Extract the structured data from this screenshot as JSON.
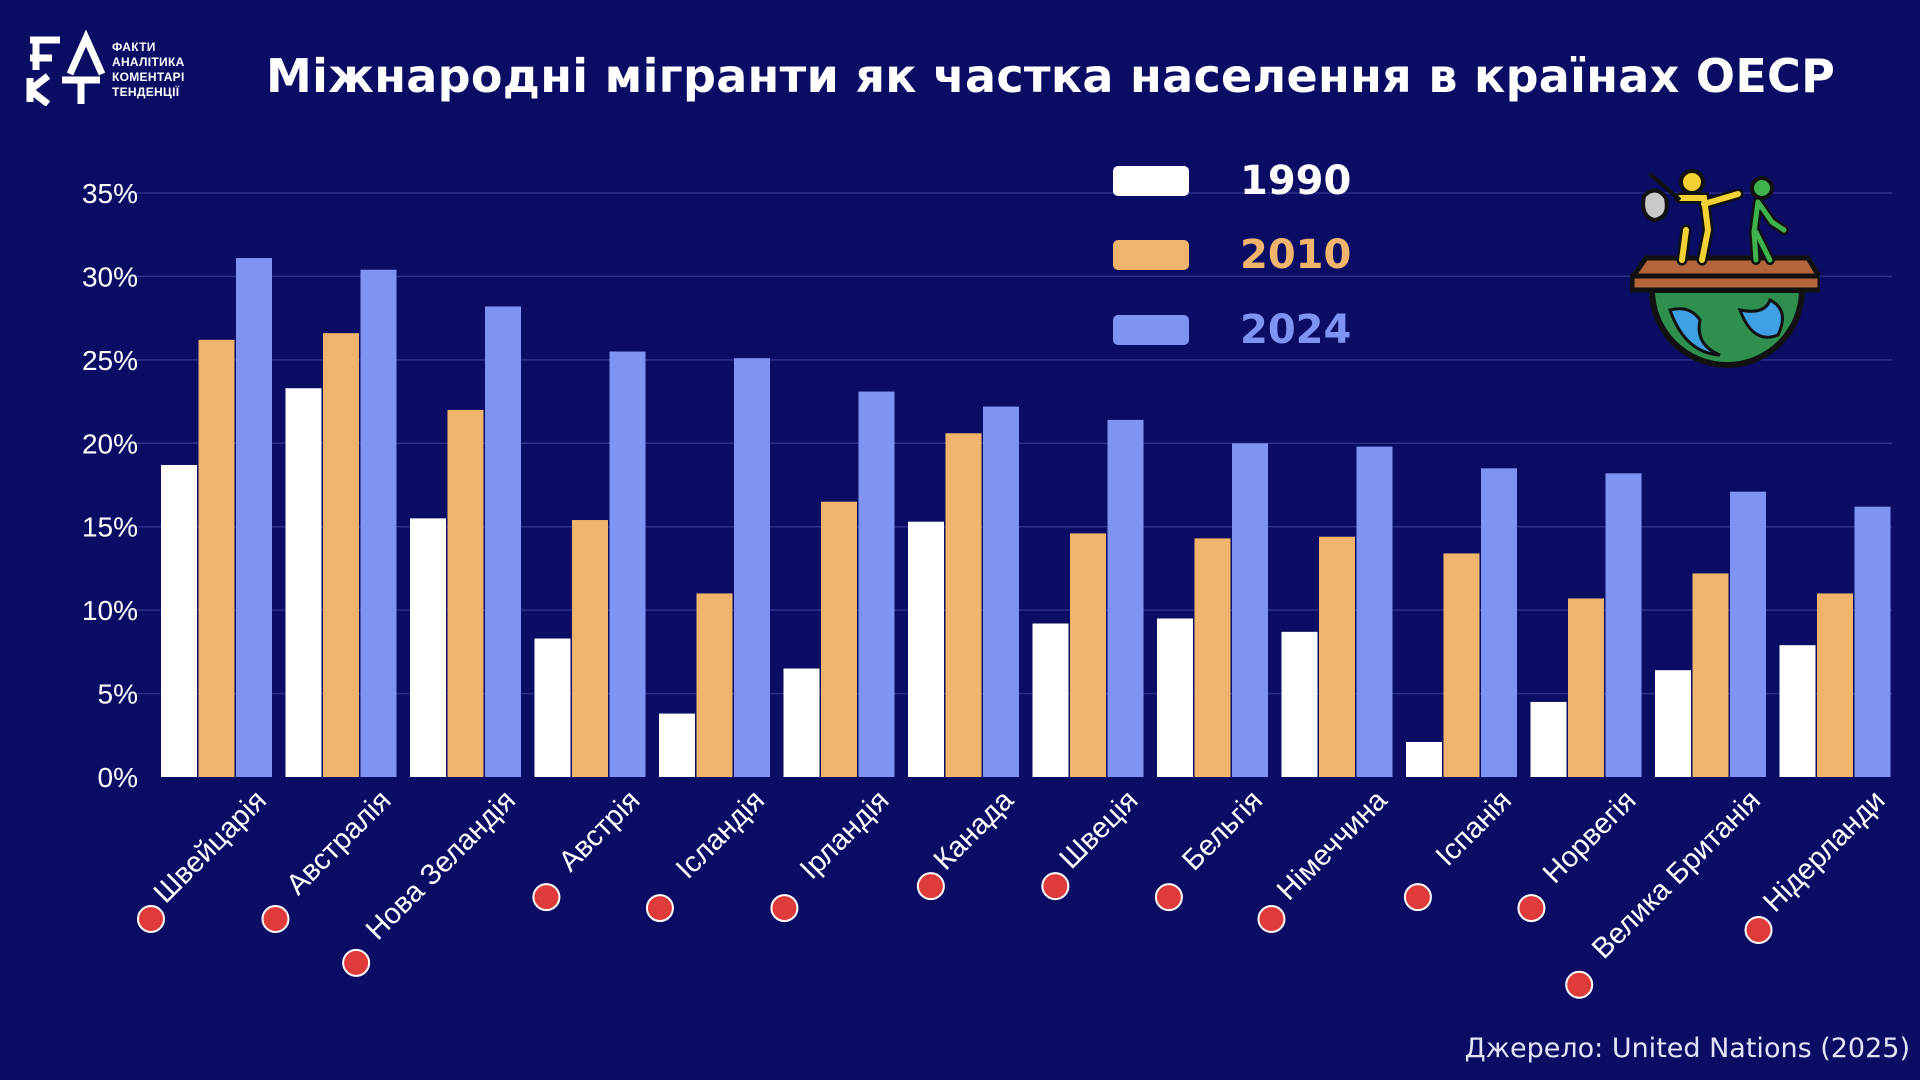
{
  "logo": {
    "mark": "ФАКТ",
    "lines": [
      "ФАКТИ",
      "АНАЛІТИКА",
      "КОМЕНТАРІ",
      "ТЕНДЕНЦІЇ"
    ]
  },
  "title": "Міжнародні мігранти як частка населення в країнах ОЕСР",
  "source": "Джерело: United Nations (2025)",
  "colors": {
    "background": "#0b0c63",
    "gridline": "#2a2f8a",
    "axis_text": "#ffffff"
  },
  "illustration_icon": "migrants-on-globe-icon",
  "chart_data": {
    "type": "bar",
    "title": "",
    "xlabel": "",
    "ylabel": "",
    "ylim": [
      0,
      35
    ],
    "y_ticks": [
      0,
      5,
      10,
      15,
      20,
      25,
      30,
      35
    ],
    "y_tick_format": "%",
    "grid": true,
    "legend_position": "top-right",
    "categories": [
      "Швейцарія",
      "Австралія",
      "Нова Зеландія",
      "Австрія",
      "Ісландія",
      "Ірландія",
      "Канада",
      "Швеція",
      "Бельгія",
      "Німеччина",
      "Іспанія",
      "Норвегія",
      "Велика Британія",
      "Нідерланди"
    ],
    "flag_icons": [
      "switzerland-flag-icon",
      "australia-flag-icon",
      "new-zealand-flag-icon",
      "austria-flag-icon",
      "iceland-flag-icon",
      "ireland-flag-icon",
      "canada-flag-icon",
      "sweden-flag-icon",
      "belgium-flag-icon",
      "germany-flag-icon",
      "spain-flag-icon",
      "norway-flag-icon",
      "uk-flag-icon",
      "netherlands-flag-icon"
    ],
    "series": [
      {
        "name": "1990",
        "color": "#ffffff",
        "values": [
          18.7,
          23.3,
          15.5,
          8.3,
          3.8,
          6.5,
          15.3,
          9.2,
          9.5,
          8.7,
          2.1,
          4.5,
          6.4,
          7.9
        ]
      },
      {
        "name": "2010",
        "color": "#f1b46c",
        "values": [
          26.2,
          26.6,
          22.0,
          15.4,
          11.0,
          16.5,
          20.6,
          14.6,
          14.3,
          14.4,
          13.4,
          10.7,
          12.2,
          11.0
        ]
      },
      {
        "name": "2024",
        "color": "#7f93f2",
        "values": [
          31.1,
          30.4,
          28.2,
          25.5,
          25.1,
          23.1,
          22.2,
          21.4,
          20.0,
          19.8,
          18.5,
          18.2,
          17.1,
          16.2
        ]
      }
    ]
  }
}
